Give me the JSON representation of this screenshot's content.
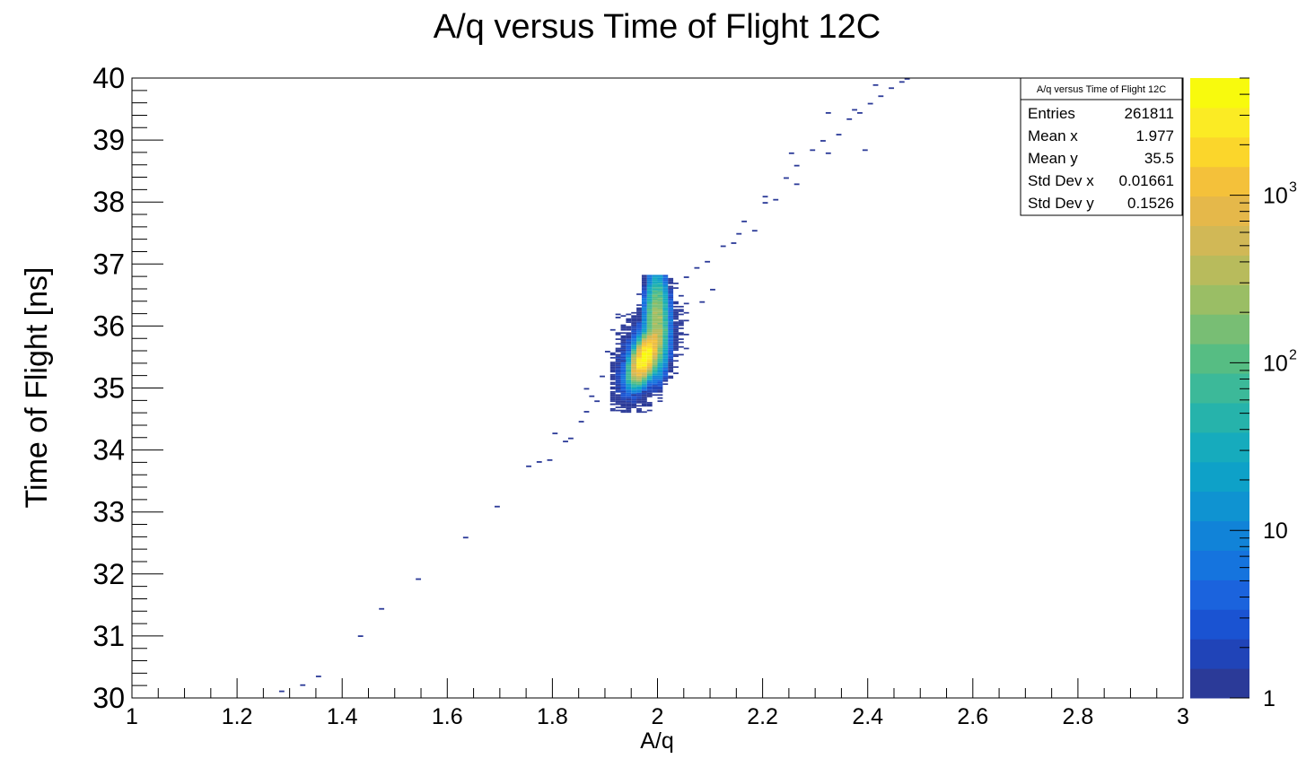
{
  "chart_data": {
    "type": "heatmap",
    "title": "A/q versus Time of Flight 12C",
    "xlabel": "A/q",
    "ylabel": "Time of Flight [ns]",
    "xlim": [
      1,
      3
    ],
    "ylim": [
      30,
      40
    ],
    "x_ticks": [
      "1",
      "1.2",
      "1.4",
      "1.6",
      "1.8",
      "2",
      "2.2",
      "2.4",
      "2.6",
      "2.8",
      "3"
    ],
    "y_ticks": [
      "30",
      "31",
      "32",
      "33",
      "34",
      "35",
      "36",
      "37",
      "38",
      "39",
      "40"
    ],
    "z_scale": "log",
    "z_range": [
      1,
      5000
    ],
    "palette_labels": [
      {
        "base": "1",
        "exp": "",
        "value": 1
      },
      {
        "base": "10",
        "exp": "",
        "value": 10
      },
      {
        "base": "10",
        "exp": "2",
        "value": 100
      },
      {
        "base": "10",
        "exp": "3",
        "value": 1000
      }
    ],
    "palette_colors": [
      "#2b3a98",
      "#2044b8",
      "#1a53d2",
      "#1b63dd",
      "#1574de",
      "#1183d8",
      "#0f93d1",
      "#0ea1c8",
      "#16abbd",
      "#26b3ab",
      "#3cb999",
      "#56bd83",
      "#78be74",
      "#9abe65",
      "#b8bb5c",
      "#d1b856",
      "#e5b84a",
      "#f4c13a",
      "#fbd62b",
      "#fbeb24",
      "#f8fa0d"
    ],
    "main_cluster": {
      "x": 1.977,
      "y": 35.5,
      "sx": 0.016,
      "sy": 0.15
    },
    "scatter_points": [
      [
        1.28,
        30.12
      ],
      [
        1.32,
        30.22
      ],
      [
        1.35,
        30.36
      ],
      [
        1.43,
        31.01
      ],
      [
        1.47,
        31.45
      ],
      [
        1.54,
        31.93
      ],
      [
        1.63,
        32.6
      ],
      [
        1.69,
        33.1
      ],
      [
        1.75,
        33.75
      ],
      [
        1.77,
        33.82
      ],
      [
        1.79,
        33.85
      ],
      [
        1.8,
        34.28
      ],
      [
        1.82,
        34.15
      ],
      [
        1.83,
        34.2
      ],
      [
        1.85,
        34.47
      ],
      [
        1.86,
        34.63
      ],
      [
        1.87,
        34.88
      ],
      [
        1.88,
        34.8
      ],
      [
        1.89,
        35.2
      ],
      [
        1.9,
        35.6
      ],
      [
        1.91,
        34.75
      ],
      [
        1.93,
        35.45
      ],
      [
        1.92,
        36.15
      ],
      [
        1.96,
        36.3
      ],
      [
        1.95,
        34.9
      ],
      [
        2.05,
        36.8
      ],
      [
        2.07,
        36.95
      ],
      [
        2.09,
        37.05
      ],
      [
        2.12,
        37.3
      ],
      [
        2.14,
        37.35
      ],
      [
        2.15,
        37.5
      ],
      [
        2.16,
        37.7
      ],
      [
        2.18,
        37.55
      ],
      [
        2.2,
        38.0
      ],
      [
        2.22,
        38.05
      ],
      [
        2.24,
        38.4
      ],
      [
        2.26,
        38.6
      ],
      [
        2.29,
        38.85
      ],
      [
        2.31,
        39.0
      ],
      [
        2.34,
        39.1
      ],
      [
        2.36,
        39.35
      ],
      [
        2.38,
        39.45
      ],
      [
        2.4,
        39.6
      ],
      [
        2.42,
        39.72
      ],
      [
        2.44,
        39.85
      ],
      [
        2.46,
        39.95
      ],
      [
        2.47,
        40.0
      ],
      [
        2.32,
        38.8
      ],
      [
        2.39,
        38.85
      ],
      [
        2.41,
        39.9
      ],
      [
        2.2,
        38.1
      ],
      [
        2.26,
        38.3
      ],
      [
        2.08,
        36.4
      ],
      [
        2.1,
        36.6
      ],
      [
        2.03,
        35.25
      ],
      [
        1.97,
        34.95
      ],
      [
        1.86,
        35.0
      ],
      [
        2.25,
        38.8
      ],
      [
        2.32,
        39.45
      ],
      [
        2.37,
        39.5
      ]
    ],
    "stats": {
      "title": "A/q versus Time of Flight 12C",
      "rows": [
        {
          "label": "Entries",
          "value": "261811"
        },
        {
          "label": "Mean x",
          "value": "1.977"
        },
        {
          "label": "Mean y",
          "value": "35.5"
        },
        {
          "label": "Std Dev x",
          "value": "0.01661"
        },
        {
          "label": "Std Dev y",
          "value": "0.1526"
        }
      ]
    }
  }
}
